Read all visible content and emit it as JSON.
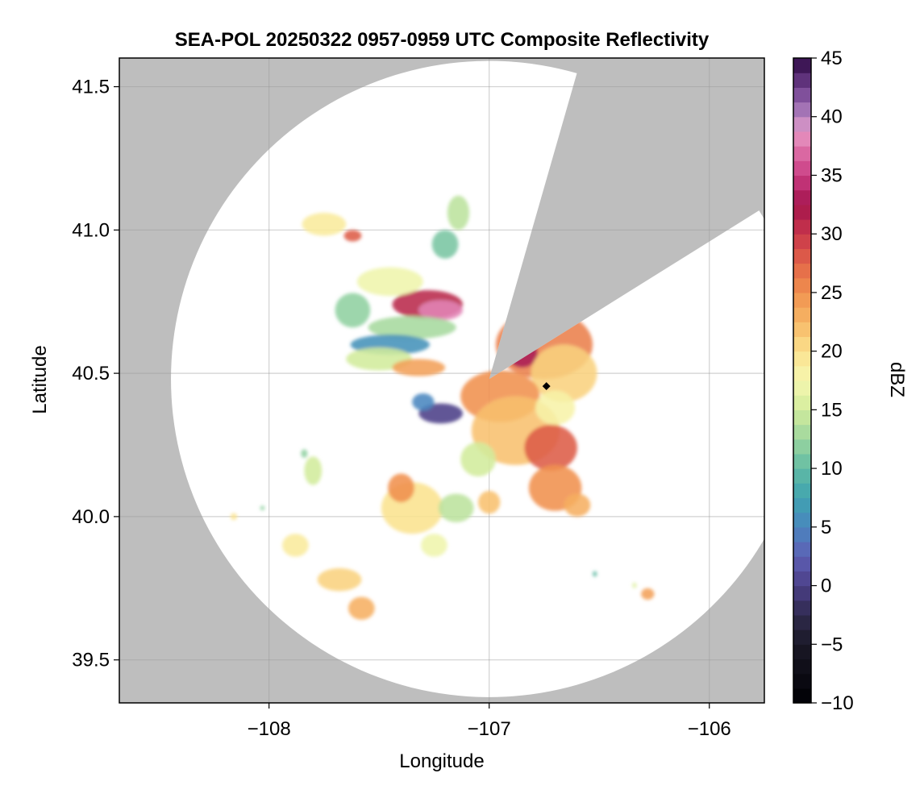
{
  "chart_data": {
    "type": "heatmap",
    "title": "SEA-POL 20250322 0957-0959 UTC Composite Reflectivity",
    "xlabel": "Longitude",
    "ylabel": "Latitude",
    "xlim": [
      -108.68,
      -105.75
    ],
    "ylim": [
      39.35,
      41.6
    ],
    "x_ticks": [
      -108,
      -107,
      -106
    ],
    "x_tick_labels": [
      "−108",
      "−107",
      "−106"
    ],
    "y_ticks": [
      39.5,
      40.0,
      40.5,
      41.0,
      41.5
    ],
    "y_tick_labels": [
      "39.5",
      "40.0",
      "40.5",
      "41.0",
      "41.5"
    ],
    "grid": true,
    "background_color": "#bebebe",
    "radar": {
      "center_lon": -107.0,
      "center_lat": 40.48,
      "range_lat_deg": 1.11,
      "blocked_sector_start_deg": 16,
      "blocked_sector_end_deg": 58,
      "coverage_color": "#ffffff"
    },
    "marker": {
      "lon": -106.74,
      "lat": 40.455,
      "shape": "diamond",
      "color": "#000000"
    },
    "colorbar": {
      "label": "dBZ",
      "min": -10,
      "max": 45,
      "ticks": [
        -10,
        -5,
        0,
        5,
        10,
        15,
        20,
        25,
        30,
        35,
        40,
        45
      ],
      "tick_labels": [
        "−10",
        "−5",
        "0",
        "5",
        "10",
        "15",
        "20",
        "25",
        "30",
        "35",
        "40",
        "45"
      ],
      "step": 1.25,
      "colormap": "spectral_r",
      "color_stops": [
        {
          "v": -10,
          "c": "#000004"
        },
        {
          "v": -5,
          "c": "#1a1826"
        },
        {
          "v": -2.5,
          "c": "#2f2a4d"
        },
        {
          "v": 0,
          "c": "#4b3f87"
        },
        {
          "v": 2.5,
          "c": "#5e5fb4"
        },
        {
          "v": 5,
          "c": "#4a86bf"
        },
        {
          "v": 7.5,
          "c": "#3fa3b0"
        },
        {
          "v": 10,
          "c": "#62bba4"
        },
        {
          "v": 12.5,
          "c": "#9bd59f"
        },
        {
          "v": 15,
          "c": "#d2ec9c"
        },
        {
          "v": 17.5,
          "c": "#f6f7b0"
        },
        {
          "v": 20,
          "c": "#fbe28e"
        },
        {
          "v": 22.5,
          "c": "#f7b766"
        },
        {
          "v": 25,
          "c": "#f0914f"
        },
        {
          "v": 27.5,
          "c": "#e26548"
        },
        {
          "v": 30,
          "c": "#c9364a"
        },
        {
          "v": 32.5,
          "c": "#a3144d"
        },
        {
          "v": 35,
          "c": "#c93c82"
        },
        {
          "v": 37.5,
          "c": "#e076ac"
        },
        {
          "v": 38.75,
          "c": "#e59ac6"
        },
        {
          "v": 40,
          "c": "#b484c2"
        },
        {
          "v": 42.5,
          "c": "#6f3f8e"
        },
        {
          "v": 45,
          "c": "#2e0a43"
        }
      ]
    },
    "echoes": [
      {
        "lon": -107.28,
        "lat": 40.74,
        "rx": 0.16,
        "ry": 0.05,
        "dbz": 31
      },
      {
        "lon": -107.22,
        "lat": 40.72,
        "rx": 0.1,
        "ry": 0.035,
        "dbz": 38
      },
      {
        "lon": -107.35,
        "lat": 40.66,
        "rx": 0.2,
        "ry": 0.04,
        "dbz": 13
      },
      {
        "lon": -107.45,
        "lat": 40.82,
        "rx": 0.15,
        "ry": 0.05,
        "dbz": 17
      },
      {
        "lon": -107.45,
        "lat": 40.6,
        "rx": 0.18,
        "ry": 0.035,
        "dbz": 6
      },
      {
        "lon": -107.5,
        "lat": 40.55,
        "rx": 0.15,
        "ry": 0.04,
        "dbz": 15
      },
      {
        "lon": -107.32,
        "lat": 40.52,
        "rx": 0.12,
        "ry": 0.03,
        "dbz": 24
      },
      {
        "lon": -107.62,
        "lat": 40.72,
        "rx": 0.08,
        "ry": 0.06,
        "dbz": 12
      },
      {
        "lon": -107.2,
        "lat": 40.95,
        "rx": 0.06,
        "ry": 0.05,
        "dbz": 11
      },
      {
        "lon": -107.14,
        "lat": 41.06,
        "rx": 0.05,
        "ry": 0.06,
        "dbz": 14
      },
      {
        "lon": -107.75,
        "lat": 41.02,
        "rx": 0.1,
        "ry": 0.04,
        "dbz": 19
      },
      {
        "lon": -107.62,
        "lat": 40.98,
        "rx": 0.04,
        "ry": 0.02,
        "dbz": 28
      },
      {
        "lon": -107.22,
        "lat": 40.36,
        "rx": 0.1,
        "ry": 0.035,
        "dbz": 0
      },
      {
        "lon": -107.3,
        "lat": 40.4,
        "rx": 0.05,
        "ry": 0.03,
        "dbz": 5
      },
      {
        "lon": -106.75,
        "lat": 40.6,
        "rx": 0.22,
        "ry": 0.12,
        "dbz": 26
      },
      {
        "lon": -106.85,
        "lat": 40.57,
        "rx": 0.07,
        "ry": 0.05,
        "dbz": 33
      },
      {
        "lon": -106.66,
        "lat": 40.5,
        "rx": 0.15,
        "ry": 0.1,
        "dbz": 21
      },
      {
        "lon": -106.95,
        "lat": 40.42,
        "rx": 0.18,
        "ry": 0.09,
        "dbz": 25
      },
      {
        "lon": -106.88,
        "lat": 40.3,
        "rx": 0.2,
        "ry": 0.12,
        "dbz": 22
      },
      {
        "lon": -106.72,
        "lat": 40.24,
        "rx": 0.12,
        "ry": 0.08,
        "dbz": 28
      },
      {
        "lon": -106.7,
        "lat": 40.1,
        "rx": 0.12,
        "ry": 0.08,
        "dbz": 25
      },
      {
        "lon": -106.7,
        "lat": 40.38,
        "rx": 0.09,
        "ry": 0.06,
        "dbz": 18
      },
      {
        "lon": -106.6,
        "lat": 40.04,
        "rx": 0.06,
        "ry": 0.04,
        "dbz": 23
      },
      {
        "lon": -107.05,
        "lat": 40.2,
        "rx": 0.08,
        "ry": 0.06,
        "dbz": 15
      },
      {
        "lon": -107.35,
        "lat": 40.03,
        "rx": 0.14,
        "ry": 0.09,
        "dbz": 20
      },
      {
        "lon": -107.4,
        "lat": 40.1,
        "rx": 0.06,
        "ry": 0.05,
        "dbz": 25
      },
      {
        "lon": -107.15,
        "lat": 40.03,
        "rx": 0.08,
        "ry": 0.05,
        "dbz": 14
      },
      {
        "lon": -107.0,
        "lat": 40.05,
        "rx": 0.05,
        "ry": 0.04,
        "dbz": 22
      },
      {
        "lon": -107.25,
        "lat": 39.9,
        "rx": 0.06,
        "ry": 0.04,
        "dbz": 17
      },
      {
        "lon": -107.8,
        "lat": 40.16,
        "rx": 0.04,
        "ry": 0.05,
        "dbz": 15
      },
      {
        "lon": -107.84,
        "lat": 40.22,
        "rx": 0.015,
        "ry": 0.015,
        "dbz": 12
      },
      {
        "lon": -107.88,
        "lat": 39.9,
        "rx": 0.06,
        "ry": 0.04,
        "dbz": 19
      },
      {
        "lon": -107.68,
        "lat": 39.78,
        "rx": 0.1,
        "ry": 0.04,
        "dbz": 21
      },
      {
        "lon": -107.58,
        "lat": 39.68,
        "rx": 0.06,
        "ry": 0.04,
        "dbz": 23
      },
      {
        "lon": -108.16,
        "lat": 40.0,
        "rx": 0.015,
        "ry": 0.012,
        "dbz": 20
      },
      {
        "lon": -108.03,
        "lat": 40.03,
        "rx": 0.01,
        "ry": 0.008,
        "dbz": 12
      },
      {
        "lon": -106.28,
        "lat": 39.73,
        "rx": 0.03,
        "ry": 0.02,
        "dbz": 24
      },
      {
        "lon": -106.34,
        "lat": 39.76,
        "rx": 0.01,
        "ry": 0.01,
        "dbz": 16
      },
      {
        "lon": -106.52,
        "lat": 39.8,
        "rx": 0.01,
        "ry": 0.01,
        "dbz": 10
      }
    ]
  }
}
